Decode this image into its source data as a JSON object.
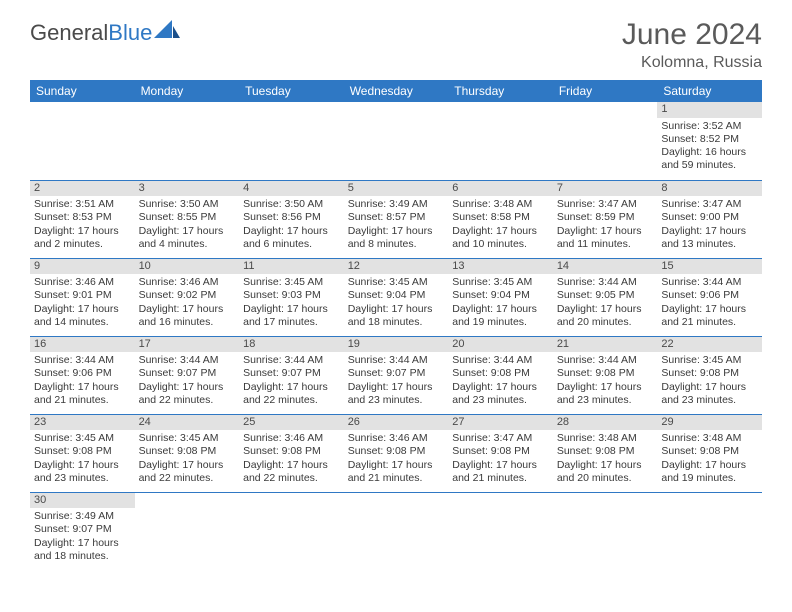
{
  "brand": {
    "part1": "General",
    "part2": "Blue"
  },
  "title": {
    "month": "June 2024",
    "location": "Kolomna, Russia"
  },
  "colors": {
    "header_bg": "#2f78c4",
    "header_text": "#ffffff",
    "daynum_bg": "#e2e2e2",
    "cell_border": "#2f78c4",
    "body_text": "#3a3a3a",
    "title_text": "#5a5a5a"
  },
  "weekdays": [
    "Sunday",
    "Monday",
    "Tuesday",
    "Wednesday",
    "Thursday",
    "Friday",
    "Saturday"
  ],
  "weeks": [
    [
      null,
      null,
      null,
      null,
      null,
      null,
      {
        "n": "1",
        "sr": "Sunrise: 3:52 AM",
        "ss": "Sunset: 8:52 PM",
        "dl1": "Daylight: 16 hours",
        "dl2": "and 59 minutes."
      }
    ],
    [
      {
        "n": "2",
        "sr": "Sunrise: 3:51 AM",
        "ss": "Sunset: 8:53 PM",
        "dl1": "Daylight: 17 hours",
        "dl2": "and 2 minutes."
      },
      {
        "n": "3",
        "sr": "Sunrise: 3:50 AM",
        "ss": "Sunset: 8:55 PM",
        "dl1": "Daylight: 17 hours",
        "dl2": "and 4 minutes."
      },
      {
        "n": "4",
        "sr": "Sunrise: 3:50 AM",
        "ss": "Sunset: 8:56 PM",
        "dl1": "Daylight: 17 hours",
        "dl2": "and 6 minutes."
      },
      {
        "n": "5",
        "sr": "Sunrise: 3:49 AM",
        "ss": "Sunset: 8:57 PM",
        "dl1": "Daylight: 17 hours",
        "dl2": "and 8 minutes."
      },
      {
        "n": "6",
        "sr": "Sunrise: 3:48 AM",
        "ss": "Sunset: 8:58 PM",
        "dl1": "Daylight: 17 hours",
        "dl2": "and 10 minutes."
      },
      {
        "n": "7",
        "sr": "Sunrise: 3:47 AM",
        "ss": "Sunset: 8:59 PM",
        "dl1": "Daylight: 17 hours",
        "dl2": "and 11 minutes."
      },
      {
        "n": "8",
        "sr": "Sunrise: 3:47 AM",
        "ss": "Sunset: 9:00 PM",
        "dl1": "Daylight: 17 hours",
        "dl2": "and 13 minutes."
      }
    ],
    [
      {
        "n": "9",
        "sr": "Sunrise: 3:46 AM",
        "ss": "Sunset: 9:01 PM",
        "dl1": "Daylight: 17 hours",
        "dl2": "and 14 minutes."
      },
      {
        "n": "10",
        "sr": "Sunrise: 3:46 AM",
        "ss": "Sunset: 9:02 PM",
        "dl1": "Daylight: 17 hours",
        "dl2": "and 16 minutes."
      },
      {
        "n": "11",
        "sr": "Sunrise: 3:45 AM",
        "ss": "Sunset: 9:03 PM",
        "dl1": "Daylight: 17 hours",
        "dl2": "and 17 minutes."
      },
      {
        "n": "12",
        "sr": "Sunrise: 3:45 AM",
        "ss": "Sunset: 9:04 PM",
        "dl1": "Daylight: 17 hours",
        "dl2": "and 18 minutes."
      },
      {
        "n": "13",
        "sr": "Sunrise: 3:45 AM",
        "ss": "Sunset: 9:04 PM",
        "dl1": "Daylight: 17 hours",
        "dl2": "and 19 minutes."
      },
      {
        "n": "14",
        "sr": "Sunrise: 3:44 AM",
        "ss": "Sunset: 9:05 PM",
        "dl1": "Daylight: 17 hours",
        "dl2": "and 20 minutes."
      },
      {
        "n": "15",
        "sr": "Sunrise: 3:44 AM",
        "ss": "Sunset: 9:06 PM",
        "dl1": "Daylight: 17 hours",
        "dl2": "and 21 minutes."
      }
    ],
    [
      {
        "n": "16",
        "sr": "Sunrise: 3:44 AM",
        "ss": "Sunset: 9:06 PM",
        "dl1": "Daylight: 17 hours",
        "dl2": "and 21 minutes."
      },
      {
        "n": "17",
        "sr": "Sunrise: 3:44 AM",
        "ss": "Sunset: 9:07 PM",
        "dl1": "Daylight: 17 hours",
        "dl2": "and 22 minutes."
      },
      {
        "n": "18",
        "sr": "Sunrise: 3:44 AM",
        "ss": "Sunset: 9:07 PM",
        "dl1": "Daylight: 17 hours",
        "dl2": "and 22 minutes."
      },
      {
        "n": "19",
        "sr": "Sunrise: 3:44 AM",
        "ss": "Sunset: 9:07 PM",
        "dl1": "Daylight: 17 hours",
        "dl2": "and 23 minutes."
      },
      {
        "n": "20",
        "sr": "Sunrise: 3:44 AM",
        "ss": "Sunset: 9:08 PM",
        "dl1": "Daylight: 17 hours",
        "dl2": "and 23 minutes."
      },
      {
        "n": "21",
        "sr": "Sunrise: 3:44 AM",
        "ss": "Sunset: 9:08 PM",
        "dl1": "Daylight: 17 hours",
        "dl2": "and 23 minutes."
      },
      {
        "n": "22",
        "sr": "Sunrise: 3:45 AM",
        "ss": "Sunset: 9:08 PM",
        "dl1": "Daylight: 17 hours",
        "dl2": "and 23 minutes."
      }
    ],
    [
      {
        "n": "23",
        "sr": "Sunrise: 3:45 AM",
        "ss": "Sunset: 9:08 PM",
        "dl1": "Daylight: 17 hours",
        "dl2": "and 23 minutes."
      },
      {
        "n": "24",
        "sr": "Sunrise: 3:45 AM",
        "ss": "Sunset: 9:08 PM",
        "dl1": "Daylight: 17 hours",
        "dl2": "and 22 minutes."
      },
      {
        "n": "25",
        "sr": "Sunrise: 3:46 AM",
        "ss": "Sunset: 9:08 PM",
        "dl1": "Daylight: 17 hours",
        "dl2": "and 22 minutes."
      },
      {
        "n": "26",
        "sr": "Sunrise: 3:46 AM",
        "ss": "Sunset: 9:08 PM",
        "dl1": "Daylight: 17 hours",
        "dl2": "and 21 minutes."
      },
      {
        "n": "27",
        "sr": "Sunrise: 3:47 AM",
        "ss": "Sunset: 9:08 PM",
        "dl1": "Daylight: 17 hours",
        "dl2": "and 21 minutes."
      },
      {
        "n": "28",
        "sr": "Sunrise: 3:48 AM",
        "ss": "Sunset: 9:08 PM",
        "dl1": "Daylight: 17 hours",
        "dl2": "and 20 minutes."
      },
      {
        "n": "29",
        "sr": "Sunrise: 3:48 AM",
        "ss": "Sunset: 9:08 PM",
        "dl1": "Daylight: 17 hours",
        "dl2": "and 19 minutes."
      }
    ],
    [
      {
        "n": "30",
        "sr": "Sunrise: 3:49 AM",
        "ss": "Sunset: 9:07 PM",
        "dl1": "Daylight: 17 hours",
        "dl2": "and 18 minutes."
      },
      null,
      null,
      null,
      null,
      null,
      null
    ]
  ]
}
